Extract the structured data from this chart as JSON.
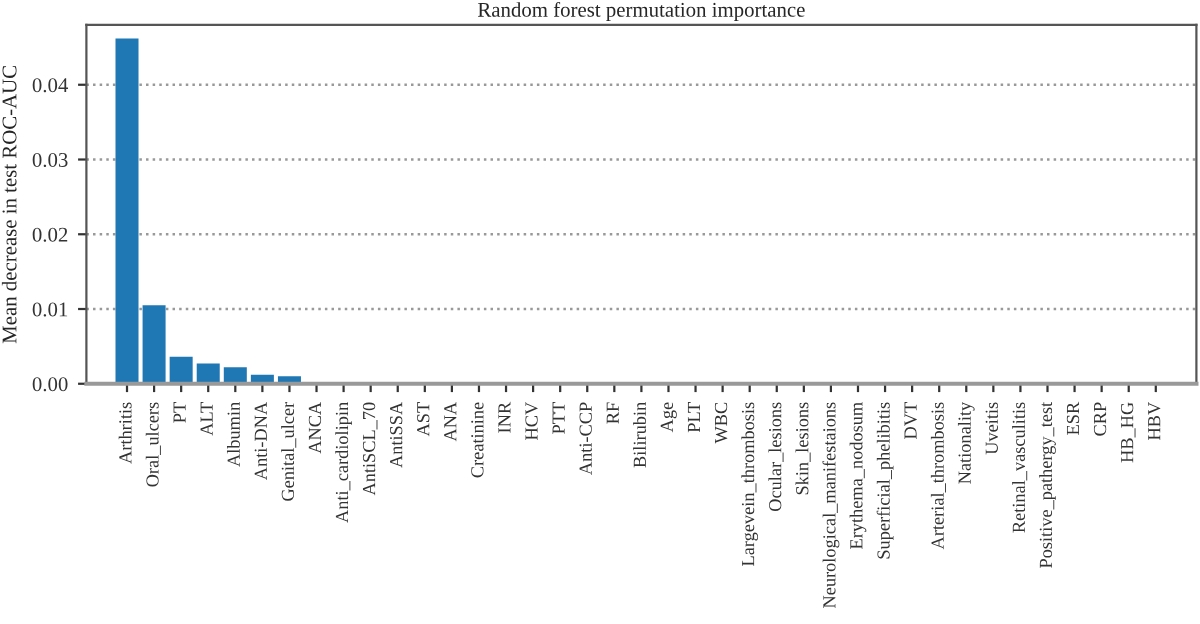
{
  "chart_data": {
    "type": "bar",
    "title": "Random forest permutation importance",
    "ylabel": "Mean decrease in test ROC-AUC",
    "categories": [
      "Arthritis",
      "Oral_ulcers",
      "PT",
      "ALT",
      "Albumin",
      "Anti-DNA",
      "Genital_ulcer",
      "ANCA",
      "Anti_cardiolipin",
      "AntiSCL_70",
      "AntiSSA",
      "AST",
      "ANA",
      "Creatinine",
      "INR",
      "HCV",
      "PTT",
      "Anti-CCP",
      "RF",
      "Bilirubin",
      "Age",
      "PLT",
      "WBC",
      "Largevein_thrombosis",
      "Ocular_lesions",
      "Skin_lesions",
      "Neurological_manifestaions",
      "Erythema_nodosum",
      "Superficial_phelibitis",
      "DVT",
      "Arterial_thrombosis",
      "Nationality",
      "Uveitis",
      "Retinal_vasculitis",
      "Positive_pathergy_test",
      "ESR",
      "CRP",
      "HB_HG",
      "HBV"
    ],
    "values": [
      0.0462,
      0.0105,
      0.0036,
      0.0027,
      0.0022,
      0.0012,
      0.001,
      0,
      0,
      0,
      0,
      0,
      0,
      0,
      0,
      0,
      0,
      0,
      0,
      0,
      0,
      0,
      0,
      0,
      0,
      0,
      0,
      0,
      0,
      0,
      0,
      0,
      0,
      0,
      0,
      0,
      0,
      0,
      0
    ],
    "color": "#1f77b4",
    "ylim": [
      0,
      0.048
    ],
    "yticks": [
      {
        "value": 0,
        "label": "0.00"
      },
      {
        "value": 0.01,
        "label": "0.01"
      },
      {
        "value": 0.02,
        "label": "0.02"
      },
      {
        "value": 0.03,
        "label": "0.03"
      },
      {
        "value": 0.04,
        "label": "0.04"
      }
    ],
    "grid": "y"
  }
}
